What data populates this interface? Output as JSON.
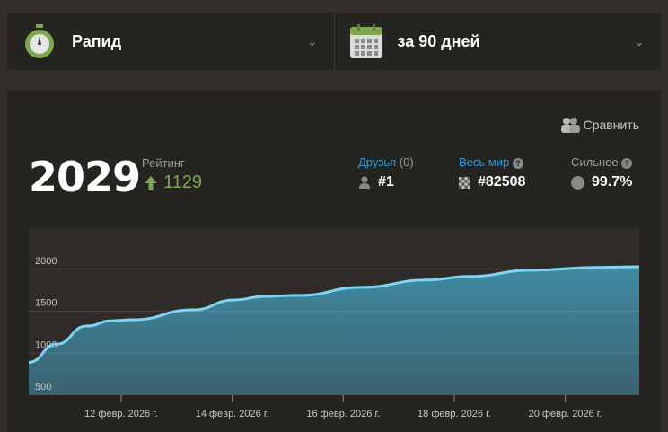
{
  "selectors": {
    "game_type": {
      "label": "Рапид",
      "icon": "stopwatch-icon"
    },
    "period": {
      "label": "за 90 дней",
      "icon": "calendar-icon"
    }
  },
  "stats": {
    "compare_label": "Сравнить",
    "rating": "2029",
    "rating_label": "Рейтинг",
    "rating_change": "1129",
    "friends": {
      "label": "Друзья",
      "count": "(0)",
      "value": "#1"
    },
    "world": {
      "label": "Весь мир",
      "value": "#82508"
    },
    "percentile": {
      "label": "Сильнее",
      "value": "99.7%"
    }
  },
  "colors": {
    "accent_blue": "#2d9cdb",
    "positive_green": "#7fa650",
    "line": "#7fd4f2",
    "fill_top": "#3f8ba3",
    "fill_bottom": "#3a6270"
  },
  "chart_data": {
    "type": "area",
    "ylim": [
      500,
      2500
    ],
    "yticks": [
      500,
      1000,
      1500,
      2000
    ],
    "ytick_labels": [
      "500",
      "1000",
      "1500",
      "2000"
    ],
    "xlim": [
      "2026-02-10T08:00",
      "2026-02-21T08:00"
    ],
    "xticks": [
      "2026-02-12",
      "2026-02-14",
      "2026-02-16",
      "2026-02-18",
      "2026-02-20"
    ],
    "xtick_labels": [
      "12 февр. 2026 г.",
      "14 февр. 2026 г.",
      "16 февр. 2026 г.",
      "18 февр. 2026 г.",
      "20 февр. 2026 г."
    ],
    "grid": true,
    "x": [
      "2026-02-10T08:00",
      "2026-02-10T20:00",
      "2026-02-11T09:00",
      "2026-02-11T20:00",
      "2026-02-12T05:00",
      "2026-02-13T07:00",
      "2026-02-14T01:00",
      "2026-02-14T14:00",
      "2026-02-15T05:00",
      "2026-02-16T08:00",
      "2026-02-17T12:00",
      "2026-02-18T06:00",
      "2026-02-19T10:00",
      "2026-02-20T13:00",
      "2026-02-21T08:00"
    ],
    "values": [
      890,
      1107,
      1323,
      1387,
      1398,
      1516,
      1634,
      1677,
      1688,
      1785,
      1871,
      1914,
      1989,
      2021,
      2029
    ]
  }
}
